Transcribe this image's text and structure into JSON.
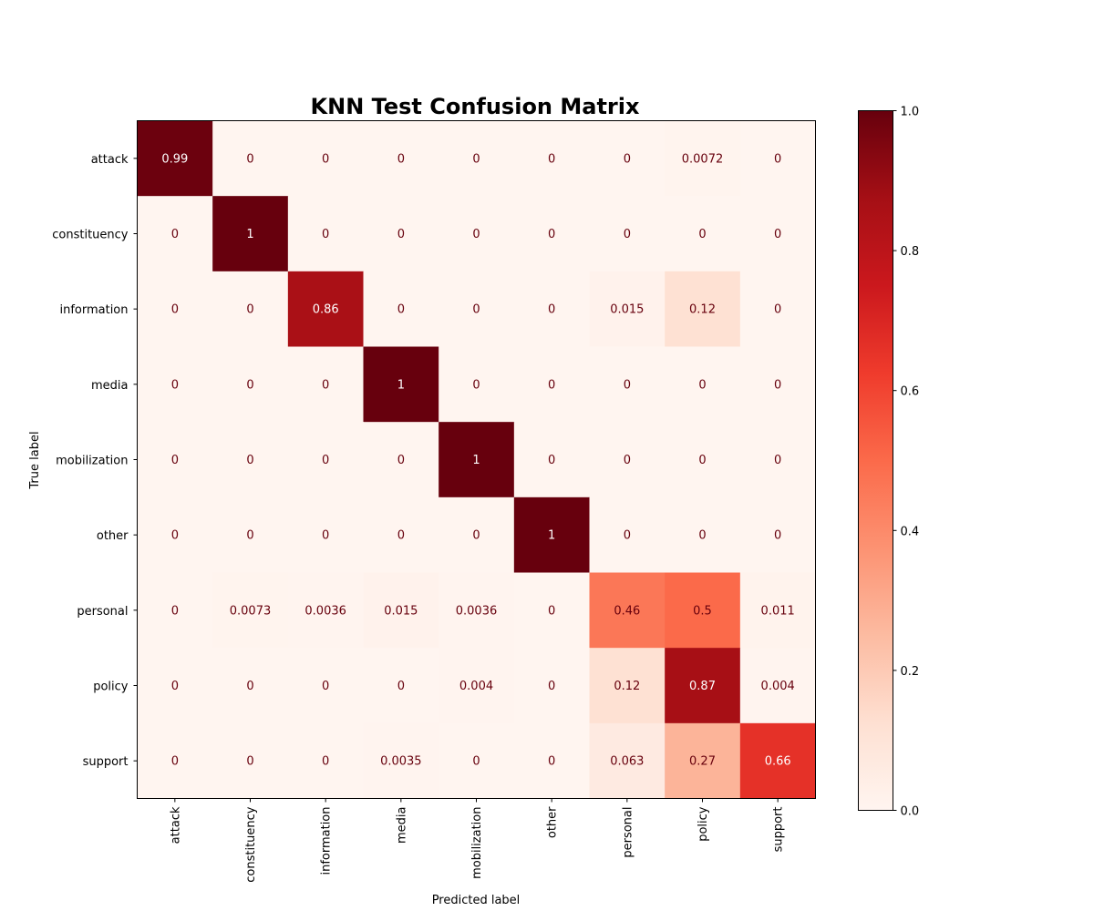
{
  "chart_data": {
    "type": "heatmap",
    "title": "KNN Test Confusion Matrix",
    "xlabel": "Predicted label",
    "ylabel": "True label",
    "x_categories": [
      "attack",
      "constituency",
      "information",
      "media",
      "mobilization",
      "other",
      "personal",
      "policy",
      "support"
    ],
    "y_categories": [
      "attack",
      "constituency",
      "information",
      "media",
      "mobilization",
      "other",
      "personal",
      "policy",
      "support"
    ],
    "values": [
      [
        0.99,
        0,
        0,
        0,
        0,
        0,
        0,
        0.0072,
        0
      ],
      [
        0,
        1,
        0,
        0,
        0,
        0,
        0,
        0,
        0
      ],
      [
        0,
        0,
        0.86,
        0,
        0,
        0,
        0.015,
        0.12,
        0
      ],
      [
        0,
        0,
        0,
        1,
        0,
        0,
        0,
        0,
        0
      ],
      [
        0,
        0,
        0,
        0,
        1,
        0,
        0,
        0,
        0
      ],
      [
        0,
        0,
        0,
        0,
        0,
        1,
        0,
        0,
        0
      ],
      [
        0,
        0.0073,
        0.0036,
        0.015,
        0.0036,
        0,
        0.46,
        0.5,
        0.011
      ],
      [
        0,
        0,
        0,
        0,
        0.004,
        0,
        0.12,
        0.87,
        0.004
      ],
      [
        0,
        0,
        0,
        0.0035,
        0,
        0,
        0.063,
        0.27,
        0.66
      ]
    ],
    "colormap": "Reds",
    "colorbar": {
      "range": [
        0.0,
        1.0
      ],
      "ticks": [
        0.0,
        0.2,
        0.4,
        0.6,
        0.8,
        1.0
      ],
      "tick_labels": [
        "0.0",
        "0.2",
        "0.4",
        "0.6",
        "0.8",
        "1.0"
      ]
    },
    "text_colors": {
      "dark_cell": "#ffffff",
      "light_cell": "#67000d"
    }
  }
}
